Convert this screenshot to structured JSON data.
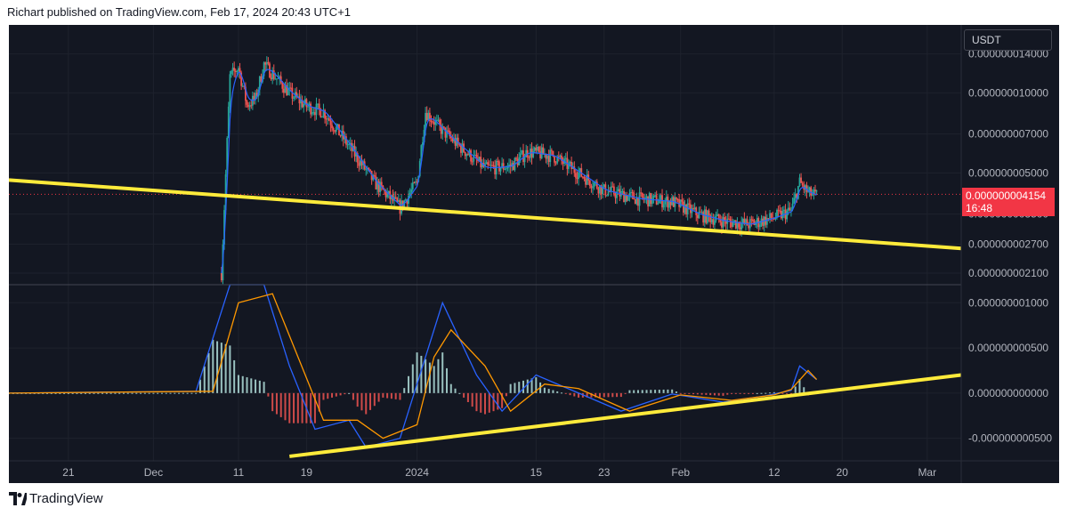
{
  "header": {
    "text": "Richart published on TradingView.com, Feb 17, 2024 20:43 UTC+1"
  },
  "footer": {
    "brand": "TradingView"
  },
  "currency_label": "USDT",
  "last_price": {
    "value": "0.000000004154",
    "countdown": "16:48"
  },
  "colors": {
    "background": "#131722",
    "up": "#26a69a",
    "down": "#ef5350",
    "ma_blue": "#2962ff",
    "signal_orange": "#ff9800",
    "trendline": "#ffeb3b",
    "label_red": "#f23645"
  },
  "chart_data": [
    {
      "type": "candlestick",
      "scale": "log",
      "ylim": [
        1.9e-09,
        1.8e-08
      ],
      "y_ticks": [
        "0.000000014000",
        "0.000000010000",
        "0.000000007000",
        "0.000000005000",
        "0.000000003500",
        "0.000000002700",
        "0.000000002100"
      ],
      "x_ticks": [
        "21",
        "Dec",
        "11",
        "19",
        "2024",
        "15",
        "23",
        "Feb",
        "12",
        "20",
        "Mar"
      ],
      "x_tick_dates": [
        "2023-11-21",
        "2023-12-01",
        "2023-12-11",
        "2023-12-19",
        "2024-01-01",
        "2024-01-15",
        "2024-01-23",
        "2024-02-01",
        "2024-02-12",
        "2024-02-20",
        "2024-03-01"
      ],
      "xlim": [
        "2023-11-14",
        "2024-03-05"
      ],
      "close_path": [
        {
          "x": "2023-12-09",
          "y": 2.1e-09
        },
        {
          "x": "2023-12-10",
          "y": 1.15e-08
        },
        {
          "x": "2023-12-11",
          "y": 1.25e-08
        },
        {
          "x": "2023-12-12",
          "y": 9e-09
        },
        {
          "x": "2023-12-13",
          "y": 9.5e-09
        },
        {
          "x": "2023-12-14",
          "y": 1.28e-08
        },
        {
          "x": "2023-12-15",
          "y": 1.18e-08
        },
        {
          "x": "2023-12-17",
          "y": 1e-08
        },
        {
          "x": "2023-12-19",
          "y": 8.9e-09
        },
        {
          "x": "2023-12-21",
          "y": 8.5e-09
        },
        {
          "x": "2023-12-24",
          "y": 6.3e-09
        },
        {
          "x": "2023-12-27",
          "y": 4.6e-09
        },
        {
          "x": "2023-12-30",
          "y": 3.7e-09
        },
        {
          "x": "2024-01-01",
          "y": 4.6e-09
        },
        {
          "x": "2024-01-02",
          "y": 8.5e-09
        },
        {
          "x": "2024-01-04",
          "y": 7.2e-09
        },
        {
          "x": "2024-01-06",
          "y": 6.3e-09
        },
        {
          "x": "2024-01-09",
          "y": 5.2e-09
        },
        {
          "x": "2024-01-12",
          "y": 5.3e-09
        },
        {
          "x": "2024-01-14",
          "y": 6e-09
        },
        {
          "x": "2024-01-17",
          "y": 5.8e-09
        },
        {
          "x": "2024-01-20",
          "y": 5e-09
        },
        {
          "x": "2024-01-23",
          "y": 4.3e-09
        },
        {
          "x": "2024-01-27",
          "y": 4e-09
        },
        {
          "x": "2024-01-31",
          "y": 3.9e-09
        },
        {
          "x": "2024-02-03",
          "y": 3.5e-09
        },
        {
          "x": "2024-02-06",
          "y": 3.3e-09
        },
        {
          "x": "2024-02-09",
          "y": 3.2e-09
        },
        {
          "x": "2024-02-12",
          "y": 3.4e-09
        },
        {
          "x": "2024-02-14",
          "y": 3.6e-09
        },
        {
          "x": "2024-02-15",
          "y": 4.6e-09
        },
        {
          "x": "2024-02-16",
          "y": 4.2e-09
        },
        {
          "x": "2024-02-17",
          "y": 4.1e-09
        }
      ],
      "trendline": [
        {
          "x": "2023-11-14",
          "y": 4.7e-09
        },
        {
          "x": "2024-03-05",
          "y": 2.6e-09
        }
      ]
    },
    {
      "type": "line",
      "indicator": "MACD-style oscillator",
      "ylim": [
        -7.5e-10,
        1.2e-09
      ],
      "y_ticks": [
        "0.000000001000",
        "0.000000000500",
        "0.000000000000",
        "-0.000000000500"
      ],
      "series": [
        {
          "color": "#2962ff",
          "points": [
            {
              "x": "2023-11-14",
              "y": 0.0
            },
            {
              "x": "2023-12-06",
              "y": 2e-11
            },
            {
              "x": "2023-12-10",
              "y": 1.2e-09
            },
            {
              "x": "2023-12-14",
              "y": 1.2e-09
            },
            {
              "x": "2023-12-17",
              "y": 3e-10
            },
            {
              "x": "2023-12-20",
              "y": -4e-10
            },
            {
              "x": "2023-12-24",
              "y": -3e-10
            },
            {
              "x": "2023-12-26",
              "y": -6e-10
            },
            {
              "x": "2023-12-30",
              "y": -5e-10
            },
            {
              "x": "2024-01-02",
              "y": 4e-10
            },
            {
              "x": "2024-01-04",
              "y": 1e-09
            },
            {
              "x": "2024-01-08",
              "y": 2e-10
            },
            {
              "x": "2024-01-11",
              "y": -2e-10
            },
            {
              "x": "2024-01-15",
              "y": 2e-10
            },
            {
              "x": "2024-01-19",
              "y": 4e-11
            },
            {
              "x": "2024-01-25",
              "y": -2e-10
            },
            {
              "x": "2024-01-31",
              "y": -1e-11
            },
            {
              "x": "2024-02-06",
              "y": -1e-10
            },
            {
              "x": "2024-02-11",
              "y": -3e-11
            },
            {
              "x": "2024-02-14",
              "y": 3e-11
            },
            {
              "x": "2024-02-15",
              "y": 3e-10
            },
            {
              "x": "2024-02-17",
              "y": 1.5e-10
            }
          ]
        },
        {
          "color": "#ff9800",
          "points": [
            {
              "x": "2023-11-14",
              "y": 0.0
            },
            {
              "x": "2023-12-08",
              "y": 2e-11
            },
            {
              "x": "2023-12-11",
              "y": 1e-09
            },
            {
              "x": "2023-12-15",
              "y": 1.1e-09
            },
            {
              "x": "2023-12-18",
              "y": 4e-10
            },
            {
              "x": "2023-12-21",
              "y": -3e-10
            },
            {
              "x": "2023-12-25",
              "y": -3e-10
            },
            {
              "x": "2023-12-28",
              "y": -5e-10
            },
            {
              "x": "2024-01-01",
              "y": -3.5e-10
            },
            {
              "x": "2024-01-03",
              "y": 4e-10
            },
            {
              "x": "2024-01-05",
              "y": 7e-10
            },
            {
              "x": "2024-01-09",
              "y": 3e-10
            },
            {
              "x": "2024-01-12",
              "y": -2e-10
            },
            {
              "x": "2024-01-16",
              "y": 1e-10
            },
            {
              "x": "2024-01-20",
              "y": 5e-11
            },
            {
              "x": "2024-01-26",
              "y": -2e-10
            },
            {
              "x": "2024-02-01",
              "y": -2e-11
            },
            {
              "x": "2024-02-07",
              "y": -8e-11
            },
            {
              "x": "2024-02-12",
              "y": -2e-11
            },
            {
              "x": "2024-02-14",
              "y": 4e-11
            },
            {
              "x": "2024-02-16",
              "y": 2.5e-10
            },
            {
              "x": "2024-02-17",
              "y": 1.5e-10
            }
          ]
        }
      ],
      "trendline": [
        {
          "x": "2023-12-17",
          "y": -7e-10
        },
        {
          "x": "2024-03-05",
          "y": 2e-10
        }
      ]
    }
  ]
}
